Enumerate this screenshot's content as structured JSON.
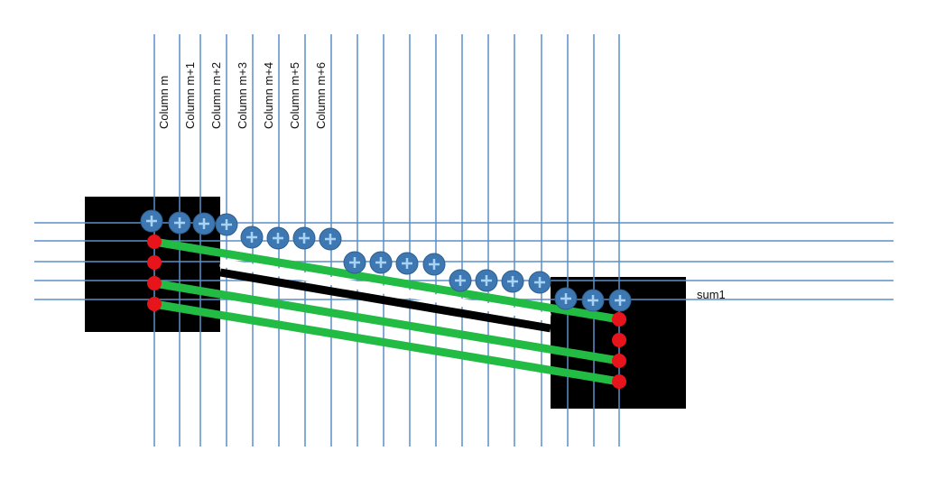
{
  "column_labels": [
    "Column m",
    "Column m+1",
    "Column m+2",
    "Column m+3",
    "Column m+4",
    "Column m+5",
    "Column m+6"
  ],
  "sum_label": "sum1"
}
